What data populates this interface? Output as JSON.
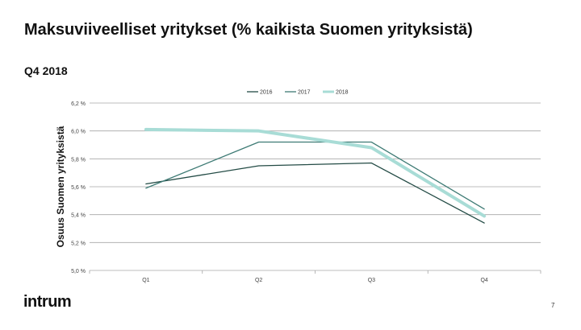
{
  "slide": {
    "title": "Maksuviiveelliset yritykset (% kaikista Suomen yrityksistä)",
    "subtitle": "Q4 2018",
    "logo_text": "intrum",
    "page_number": "7"
  },
  "chart_data": {
    "type": "line",
    "categories": [
      "Q1",
      "Q2",
      "Q3",
      "Q4"
    ],
    "series": [
      {
        "name": "2016",
        "values": [
          5.62,
          5.75,
          5.77,
          5.34
        ],
        "color": "#234b45"
      },
      {
        "name": "2017",
        "values": [
          5.59,
          5.92,
          5.92,
          5.44
        ],
        "color": "#3d7a74"
      },
      {
        "name": "2018",
        "values": [
          6.01,
          6.0,
          5.88,
          5.39
        ],
        "color": "#a8dcd6"
      }
    ],
    "ylabel": "Osuus Suomen yrityksistä",
    "ylim": [
      5.0,
      6.2
    ],
    "yticks": [
      "5,0 %",
      "5,2 %",
      "5,4 %",
      "5,6 %",
      "5,8 %",
      "6,0 %",
      "6,2 %"
    ],
    "grid": true,
    "legend_position": "top-center"
  }
}
